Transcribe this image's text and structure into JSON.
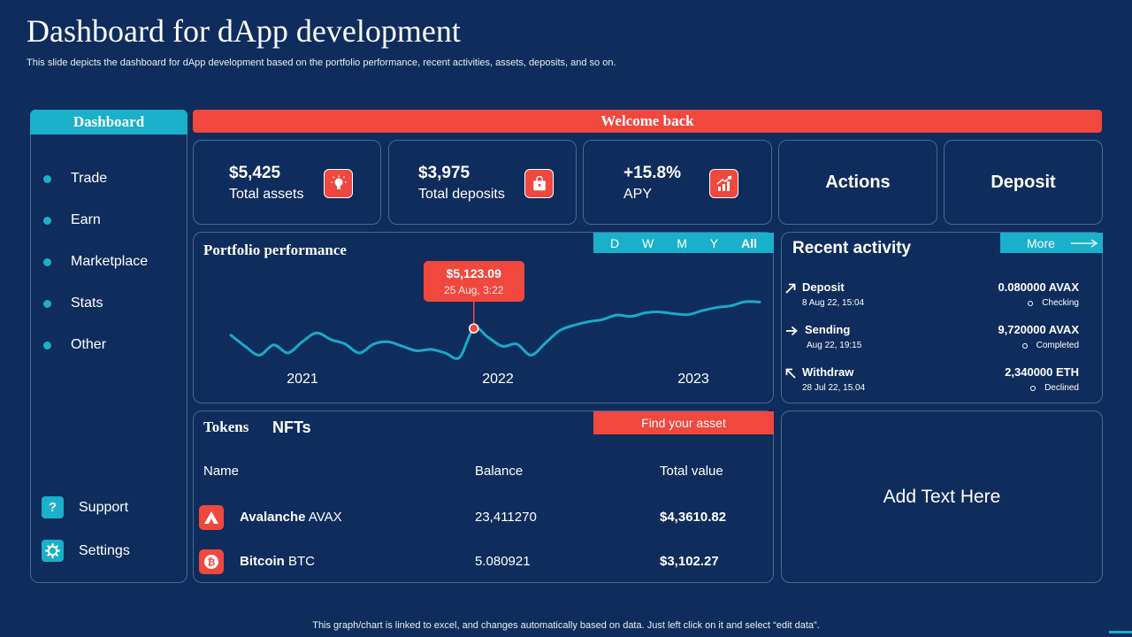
{
  "title": "Dashboard for dApp development",
  "subtitle": "This slide depicts the dashboard for dApp development based on the portfolio performance, recent activities, assets, deposits, and so on.",
  "sidebar": {
    "header": "Dashboard",
    "items": [
      {
        "label": "Trade"
      },
      {
        "label": "Earn"
      },
      {
        "label": "Marketplace"
      },
      {
        "label": "Stats"
      },
      {
        "label": "Other"
      }
    ],
    "support": {
      "label": "Support",
      "icon": "?"
    },
    "settings": {
      "label": "Settings"
    }
  },
  "welcome": "Welcome back",
  "stats": [
    {
      "value": "$5,425",
      "label": "Total assets",
      "icon": "lightbulb-icon"
    },
    {
      "value": "$3,975",
      "label": "Total deposits",
      "icon": "bag-icon"
    },
    {
      "value": "+15.8%",
      "label": "APY",
      "icon": "growth-chart-icon"
    }
  ],
  "actions": {
    "actions_label": "Actions",
    "deposit_label": "Deposit"
  },
  "portfolio": {
    "title": "Portfolio performance",
    "periods": [
      "D",
      "W",
      "M",
      "Y",
      "All"
    ],
    "active_period": "All",
    "tooltip": {
      "value": "$5,123.09",
      "date": "25 Aug, 3:22"
    }
  },
  "chart_data": {
    "type": "line",
    "title": "Portfolio performance",
    "x_labels": [
      "2021",
      "2022",
      "2023"
    ],
    "values": [
      60,
      35,
      15,
      38,
      20,
      45,
      65,
      50,
      40,
      20,
      40,
      45,
      35,
      25,
      28,
      20,
      10,
      75,
      55,
      35,
      40,
      15,
      42,
      70,
      82,
      90,
      95,
      105,
      102,
      110,
      112,
      108,
      106,
      115,
      122,
      126,
      135,
      134
    ],
    "highlight_index": 17,
    "highlight_value": "$5,123.09",
    "grid": false
  },
  "activity": {
    "title": "Recent activity",
    "more_label": "More",
    "items": [
      {
        "name": "Deposit",
        "date": "8 Aug 22, 15:04",
        "amount": "0.080000  AVAX",
        "status": "Checking",
        "arrow": "arrow-up-right-icon"
      },
      {
        "name": "Sending",
        "date": "Aug 22, 19:15",
        "amount": "9,720000  AVAX",
        "status": "Completed",
        "arrow": "arrow-right-icon"
      },
      {
        "name": "Withdraw",
        "date": "28 Jul 22, 15.04",
        "amount": "2,340000  ETH",
        "status": "Declined",
        "arrow": "arrow-up-left-icon"
      }
    ]
  },
  "tokens": {
    "tab_tokens": "Tokens",
    "tab_nfts": "NFTs",
    "find_label": "Find your asset",
    "columns": [
      "Name",
      "Balance",
      "Total value"
    ],
    "rows": [
      {
        "name": "Avalanche",
        "symbol": "AVAX",
        "balance": "23,411270",
        "value": "$4,3610.82",
        "icon": "avalanche-icon"
      },
      {
        "name": "Bitcoin",
        "symbol": "BTC",
        "balance": "5.080921",
        "value": "$3,102.27",
        "icon": "bitcoin-icon"
      }
    ]
  },
  "placeholder": "Add Text Here",
  "footer": "This graph/chart is linked to excel, and changes automatically based on data. Just left click on it and select “edit data”.",
  "colors": {
    "background": "#0f2d5c",
    "accent_red": "#f0473f",
    "accent_teal": "#1ab0c9",
    "line": "#1aa9c9"
  }
}
